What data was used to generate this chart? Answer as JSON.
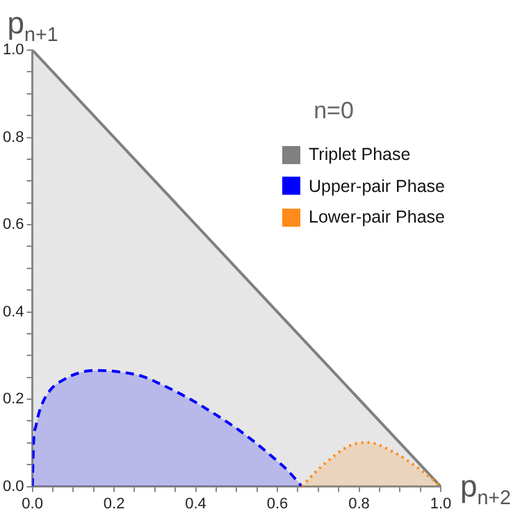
{
  "chart_data": {
    "type": "area",
    "title": "n=0",
    "xlabel": "p$_{n+2}$",
    "ylabel": "p$_{n+1}$",
    "xlim": [
      0,
      1
    ],
    "ylim": [
      0,
      1
    ],
    "xticks": [
      {
        "value": 0,
        "label": "0.0"
      },
      {
        "value": 0.05,
        "label": null
      },
      {
        "value": 0.1,
        "label": null
      },
      {
        "value": 0.15,
        "label": null
      },
      {
        "value": 0.2,
        "label": "0.2"
      },
      {
        "value": 0.25,
        "label": null
      },
      {
        "value": 0.3,
        "label": null
      },
      {
        "value": 0.35,
        "label": null
      },
      {
        "value": 0.4,
        "label": "0.4"
      },
      {
        "value": 0.45,
        "label": null
      },
      {
        "value": 0.5,
        "label": null
      },
      {
        "value": 0.55,
        "label": null
      },
      {
        "value": 0.6,
        "label": "0.6"
      },
      {
        "value": 0.65,
        "label": null
      },
      {
        "value": 0.7,
        "label": null
      },
      {
        "value": 0.75,
        "label": null
      },
      {
        "value": 0.8,
        "label": "0.8"
      },
      {
        "value": 0.85,
        "label": null
      },
      {
        "value": 0.9,
        "label": null
      },
      {
        "value": 0.95,
        "label": null
      },
      {
        "value": 1,
        "label": "1.0"
      }
    ],
    "yticks": [
      {
        "value": 0,
        "label": "0.0"
      },
      {
        "value": 0.05,
        "label": null
      },
      {
        "value": 0.1,
        "label": null
      },
      {
        "value": 0.15,
        "label": null
      },
      {
        "value": 0.2,
        "label": "0.2"
      },
      {
        "value": 0.25,
        "label": null
      },
      {
        "value": 0.3,
        "label": null
      },
      {
        "value": 0.35,
        "label": null
      },
      {
        "value": 0.4,
        "label": "0.4"
      },
      {
        "value": 0.45,
        "label": null
      },
      {
        "value": 0.5,
        "label": null
      },
      {
        "value": 0.55,
        "label": null
      },
      {
        "value": 0.6,
        "label": "0.6"
      },
      {
        "value": 0.65,
        "label": null
      },
      {
        "value": 0.7,
        "label": null
      },
      {
        "value": 0.75,
        "label": null
      },
      {
        "value": 0.8,
        "label": "0.8"
      },
      {
        "value": 0.85,
        "label": null
      },
      {
        "value": 0.9,
        "label": null
      },
      {
        "value": 0.95,
        "label": null
      },
      {
        "value": 1,
        "label": "1.0"
      }
    ],
    "grid": false,
    "legend": "top right",
    "series": [
      {
        "name": "Triplet Phase",
        "color": "#808080",
        "line_style": "solid",
        "x": [
          0,
          1
        ],
        "values": [
          1,
          0
        ]
      },
      {
        "name": "Upper-pair Phase",
        "color": "#0000ff",
        "line_style": "dashed",
        "x": [
          0,
          0.003,
          0.009,
          0.02,
          0.043,
          0.077,
          0.12,
          0.161,
          0.21,
          0.268,
          0.32,
          0.381,
          0.44,
          0.494,
          0.54,
          0.584,
          0.625,
          0.66
        ],
        "values": [
          0,
          0.1,
          0.14,
          0.18,
          0.22,
          0.245,
          0.262,
          0.266,
          0.263,
          0.253,
          0.232,
          0.203,
          0.17,
          0.137,
          0.105,
          0.071,
          0.037,
          0
        ]
      },
      {
        "name": "Lower-pair Phase",
        "color": "#ff8c1a",
        "line_style": "dotted",
        "x": [
          0.66,
          0.69,
          0.719,
          0.776,
          0.82,
          0.888,
          0.945,
          0.975,
          1
        ],
        "values": [
          0,
          0.03,
          0.055,
          0.093,
          0.101,
          0.077,
          0.042,
          0.02,
          0
        ]
      }
    ]
  }
}
